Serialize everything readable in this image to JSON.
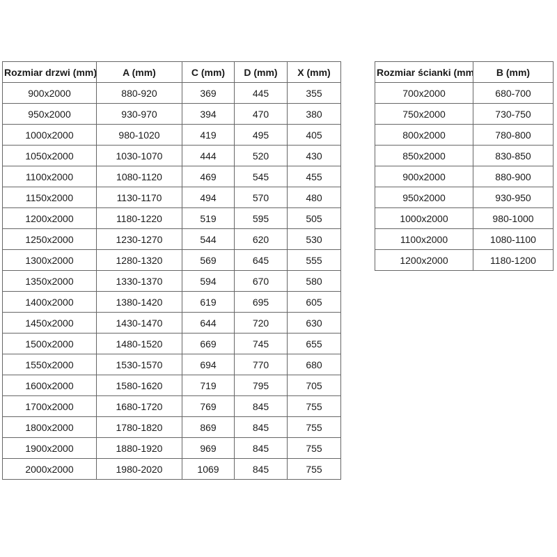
{
  "colors": {
    "border": "#666666",
    "text": "#1a1a1a",
    "background": "#ffffff"
  },
  "tables": {
    "doors": {
      "headers": [
        "Rozmiar drzwi (mm)",
        "A (mm)",
        "C (mm)",
        "D (mm)",
        "X (mm)"
      ],
      "rows": [
        [
          "900x2000",
          "880-920",
          "369",
          "445",
          "355"
        ],
        [
          "950x2000",
          "930-970",
          "394",
          "470",
          "380"
        ],
        [
          "1000x2000",
          "980-1020",
          "419",
          "495",
          "405"
        ],
        [
          "1050x2000",
          "1030-1070",
          "444",
          "520",
          "430"
        ],
        [
          "1100x2000",
          "1080-1120",
          "469",
          "545",
          "455"
        ],
        [
          "1150x2000",
          "1130-1170",
          "494",
          "570",
          "480"
        ],
        [
          "1200x2000",
          "1180-1220",
          "519",
          "595",
          "505"
        ],
        [
          "1250x2000",
          "1230-1270",
          "544",
          "620",
          "530"
        ],
        [
          "1300x2000",
          "1280-1320",
          "569",
          "645",
          "555"
        ],
        [
          "1350x2000",
          "1330-1370",
          "594",
          "670",
          "580"
        ],
        [
          "1400x2000",
          "1380-1420",
          "619",
          "695",
          "605"
        ],
        [
          "1450x2000",
          "1430-1470",
          "644",
          "720",
          "630"
        ],
        [
          "1500x2000",
          "1480-1520",
          "669",
          "745",
          "655"
        ],
        [
          "1550x2000",
          "1530-1570",
          "694",
          "770",
          "680"
        ],
        [
          "1600x2000",
          "1580-1620",
          "719",
          "795",
          "705"
        ],
        [
          "1700x2000",
          "1680-1720",
          "769",
          "845",
          "755"
        ],
        [
          "1800x2000",
          "1780-1820",
          "869",
          "845",
          "755"
        ],
        [
          "1900x2000",
          "1880-1920",
          "969",
          "845",
          "755"
        ],
        [
          "2000x2000",
          "1980-2020",
          "1069",
          "845",
          "755"
        ]
      ]
    },
    "walls": {
      "headers": [
        "Rozmiar ścianki (mm)",
        "B (mm)"
      ],
      "rows": [
        [
          "700x2000",
          "680-700"
        ],
        [
          "750x2000",
          "730-750"
        ],
        [
          "800x2000",
          "780-800"
        ],
        [
          "850x2000",
          "830-850"
        ],
        [
          "900x2000",
          "880-900"
        ],
        [
          "950x2000",
          "930-950"
        ],
        [
          "1000x2000",
          "980-1000"
        ],
        [
          "1100x2000",
          "1080-1100"
        ],
        [
          "1200x2000",
          "1180-1200"
        ]
      ]
    }
  }
}
